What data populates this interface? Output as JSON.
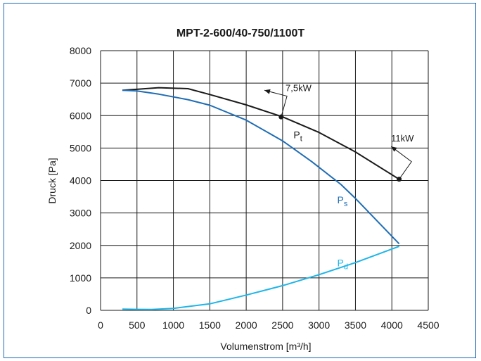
{
  "chart_data": {
    "type": "line",
    "title": "MPT-2-600/40-750/1100T",
    "xlabel": "Volumenstrom [m³/h]",
    "ylabel": "Druck [Pa]",
    "xlim": [
      0,
      4500
    ],
    "ylim": [
      0,
      8000
    ],
    "x_ticks": [
      "0",
      "500",
      "1000",
      "1500",
      "2000",
      "2500",
      "3000",
      "3500",
      "4000",
      "4500"
    ],
    "y_ticks": [
      "0",
      "1000",
      "2000",
      "3000",
      "4000",
      "5000",
      "6000",
      "7000",
      "8000"
    ],
    "grid": true,
    "colors": {
      "pt": "#1a1a1a",
      "ps": "#1f6db5",
      "pd": "#1fb5e8",
      "grid": "#1a1a1a",
      "frame": "#1f6db5"
    },
    "series": [
      {
        "key": "pt",
        "name": "Pt",
        "name_main": "P",
        "name_sub": "t",
        "x": [
          300,
          500,
          800,
          1200,
          1500,
          2000,
          2500,
          3000,
          3500,
          4100
        ],
        "y": [
          6780,
          6810,
          6860,
          6830,
          6650,
          6330,
          5960,
          5480,
          4880,
          4040
        ]
      },
      {
        "key": "ps",
        "name": "Ps",
        "name_main": "P",
        "name_sub": "s",
        "x": [
          300,
          500,
          800,
          1200,
          1500,
          2000,
          2500,
          2900,
          3300,
          3500,
          3800,
          4100
        ],
        "y": [
          6780,
          6760,
          6660,
          6490,
          6320,
          5860,
          5220,
          4580,
          3880,
          3450,
          2750,
          2050
        ]
      },
      {
        "key": "pd",
        "name": "Pd",
        "name_main": "P",
        "name_sub": "d",
        "x": [
          300,
          500,
          700,
          1000,
          1500,
          2000,
          2500,
          3000,
          3500,
          4100
        ],
        "y": [
          40,
          30,
          25,
          60,
          200,
          470,
          760,
          1100,
          1470,
          1970
        ]
      }
    ],
    "annotations": [
      {
        "text": "7,5kW",
        "x": 2480,
        "y": 5960
      },
      {
        "text": "11kW",
        "x": 4100,
        "y": 4040
      }
    ]
  }
}
